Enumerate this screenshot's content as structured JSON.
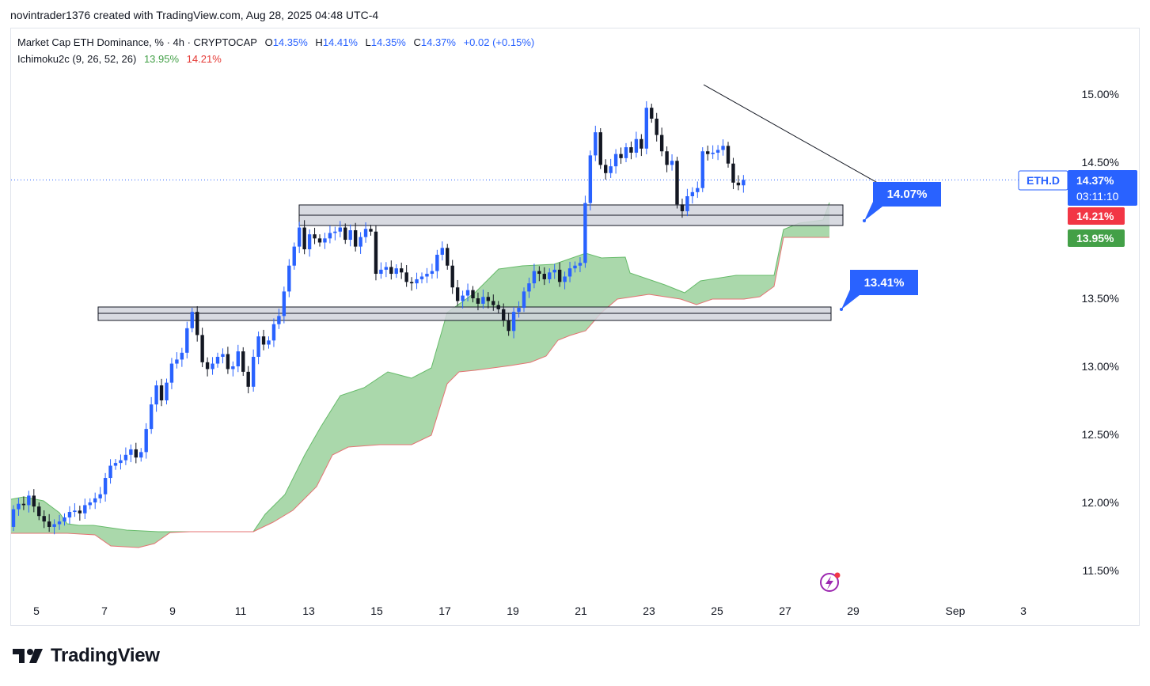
{
  "header": {
    "credit": "novintrader1376 created with TradingView.com, Aug 28, 2025 04:48 UTC-4"
  },
  "legend": {
    "title": "Market Cap ETH Dominance, % · 4h · CRYPTOCAP",
    "o_label": "O",
    "o_value": "14.35%",
    "h_label": "H",
    "h_value": "14.41%",
    "l_label": "L",
    "l_value": "14.35%",
    "c_label": "C",
    "c_value": "14.37%",
    "change": "+0.02 (+0.15%)",
    "indicator": "Ichimoku2c (9, 26, 52, 26)",
    "ind_value1": "13.95%",
    "ind_value2": "14.21%"
  },
  "price_tags": {
    "symbol": "ETH.D",
    "last_price": "14.37%",
    "countdown": "03:11:10",
    "span_red": "14.21%",
    "span_green": "13.95%"
  },
  "annotations": {
    "bubble_upper": "14.07%",
    "bubble_lower": "13.41%"
  },
  "footer": {
    "brand": "TradingView"
  },
  "colors": {
    "up": "#2962ff",
    "down": "#131722",
    "cloud": "#a5d6a7",
    "cloud_edge": "#e57373",
    "cloud_edge_green": "#66bb6a",
    "tag_blue": "#2962ff",
    "tag_red": "#f23645",
    "tag_green": "#43a047"
  },
  "chart_data": {
    "type": "candlestick",
    "symbol": "ETH.D",
    "timeframe": "4h",
    "yticks": [
      "15.00%",
      "14.50%",
      "14.00%",
      "13.50%",
      "13.00%",
      "12.50%",
      "12.00%",
      "11.50%"
    ],
    "ytick_values": [
      15.0,
      14.5,
      14.0,
      13.5,
      13.0,
      12.5,
      12.0,
      11.5
    ],
    "xticks": [
      "5",
      "7",
      "9",
      "11",
      "13",
      "15",
      "17",
      "19",
      "21",
      "23",
      "25",
      "27",
      "29",
      "Sep",
      "3"
    ],
    "xtick_days": [
      5,
      7,
      9,
      11,
      13,
      15,
      17,
      19,
      21,
      23,
      25,
      27,
      29,
      32,
      34
    ],
    "ylim": [
      11.35,
      15.45
    ],
    "last_close": 14.37,
    "candle_closes": [
      11.95,
      11.99,
      11.98,
      12.05,
      11.97,
      11.9,
      11.86,
      11.82,
      11.84,
      11.86,
      11.89,
      11.93,
      11.94,
      11.92,
      11.98,
      12.0,
      12.03,
      12.06,
      12.18,
      12.27,
      12.29,
      12.31,
      12.35,
      12.39,
      12.33,
      12.37,
      12.54,
      12.72,
      12.86,
      12.75,
      12.88,
      13.02,
      13.05,
      13.1,
      13.28,
      13.4,
      13.23,
      13.03,
      12.98,
      13.02,
      13.07,
      13.09,
      12.98,
      13.0,
      13.11,
      12.96,
      12.85,
      13.07,
      13.22,
      13.16,
      13.19,
      13.31,
      13.37,
      13.55,
      13.74,
      13.88,
      14.02,
      13.86,
      13.97,
      13.94,
      13.91,
      13.94,
      13.98,
      13.99,
      14.02,
      13.93,
      14.0,
      13.88,
      13.95,
      14.01,
      13.99,
      13.68,
      13.71,
      13.73,
      13.68,
      13.72,
      13.69,
      13.62,
      13.61,
      13.64,
      13.66,
      13.68,
      13.7,
      13.82,
      13.87,
      13.74,
      13.58,
      13.48,
      13.52,
      13.56,
      13.5,
      13.46,
      13.51,
      13.48,
      13.45,
      13.42,
      13.34,
      13.26,
      13.4,
      13.43,
      13.55,
      13.61,
      13.7,
      13.68,
      13.64,
      13.69,
      13.71,
      13.62,
      13.66,
      13.72,
      13.74,
      13.76,
      14.2,
      14.55,
      14.72,
      14.48,
      14.42,
      14.47,
      14.56,
      14.53,
      14.61,
      14.57,
      14.67,
      14.6,
      14.9,
      14.82,
      14.7,
      14.58,
      14.48,
      14.51,
      14.19,
      14.14,
      14.25,
      14.28,
      14.31,
      14.58,
      14.56,
      14.57,
      14.59,
      14.62,
      14.49,
      14.35,
      14.33,
      14.37
    ]
  }
}
